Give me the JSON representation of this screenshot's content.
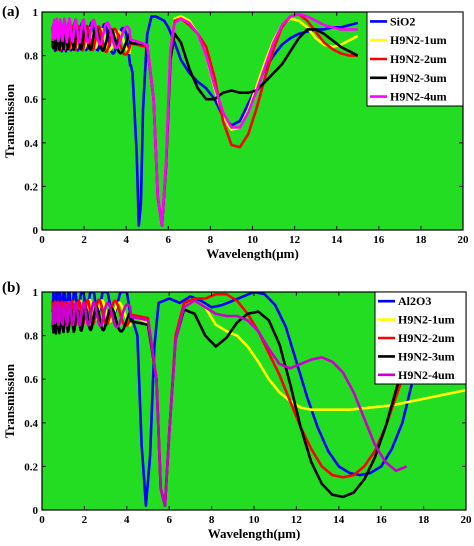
{
  "chart_data": [
    {
      "type": "line",
      "panel_label": "(a)",
      "title": "",
      "xlabel": "Wavelength(μm)",
      "ylabel": "Transmission",
      "xlim": [
        0,
        20
      ],
      "ylim": [
        0,
        1
      ],
      "xticks": [
        0,
        2,
        4,
        6,
        8,
        10,
        12,
        14,
        16,
        18,
        20
      ],
      "yticks": [
        0,
        0.2,
        0.4,
        0.6,
        0.8,
        1
      ],
      "background": "#22dd22",
      "legend_position": "top-right",
      "series": [
        {
          "name": "SiO2",
          "color": "#0000ff",
          "x": [
            0.5,
            2.5,
            4.0,
            4.3,
            4.5,
            4.6,
            4.7,
            4.8,
            5.0,
            5.2,
            5.4,
            5.6,
            5.8,
            6.0,
            6.3,
            6.6,
            7.0,
            7.4,
            7.8,
            8.2,
            8.6,
            9.0,
            9.4,
            9.8,
            10.2,
            10.6,
            11.0,
            11.4,
            11.8,
            12.2,
            12.6,
            13.0,
            13.4,
            13.8,
            14.2,
            14.6,
            15.0
          ],
          "y": [
            0.88,
            0.89,
            0.86,
            0.72,
            0.35,
            0.02,
            0.12,
            0.55,
            0.9,
            0.98,
            0.98,
            0.97,
            0.96,
            0.93,
            0.86,
            0.78,
            0.72,
            0.68,
            0.65,
            0.6,
            0.52,
            0.48,
            0.5,
            0.58,
            0.66,
            0.74,
            0.8,
            0.85,
            0.88,
            0.9,
            0.91,
            0.92,
            0.92,
            0.93,
            0.93,
            0.94,
            0.95
          ]
        },
        {
          "name": "H9N2-1um",
          "color": "#ffff00",
          "x": [
            0.5,
            2.5,
            4.0,
            5.0,
            5.3,
            5.5,
            5.7,
            5.9,
            6.1,
            6.3,
            6.6,
            7.0,
            7.4,
            7.8,
            8.2,
            8.6,
            9.0,
            9.4,
            9.8,
            10.2,
            10.6,
            11.0,
            11.4,
            11.8,
            12.2,
            12.6,
            13.0,
            13.4,
            13.8,
            14.2,
            14.6,
            15.0
          ],
          "y": [
            0.88,
            0.88,
            0.86,
            0.85,
            0.6,
            0.15,
            0.02,
            0.3,
            0.8,
            0.97,
            0.98,
            0.96,
            0.9,
            0.8,
            0.65,
            0.52,
            0.46,
            0.47,
            0.55,
            0.66,
            0.77,
            0.87,
            0.94,
            0.97,
            0.96,
            0.93,
            0.88,
            0.85,
            0.84,
            0.85,
            0.87,
            0.89
          ]
        },
        {
          "name": "H9N2-2um",
          "color": "#ff0000",
          "x": [
            0.5,
            2.5,
            4.0,
            5.0,
            5.3,
            5.5,
            5.7,
            5.9,
            6.1,
            6.3,
            6.6,
            7.0,
            7.4,
            7.8,
            8.2,
            8.6,
            9.0,
            9.4,
            9.8,
            10.2,
            10.6,
            11.0,
            11.4,
            11.8,
            12.2,
            12.6,
            13.0,
            13.4,
            13.8,
            14.2,
            14.6,
            15.0
          ],
          "y": [
            0.88,
            0.88,
            0.86,
            0.84,
            0.6,
            0.15,
            0.02,
            0.32,
            0.82,
            0.96,
            0.97,
            0.94,
            0.9,
            0.84,
            0.7,
            0.5,
            0.39,
            0.38,
            0.44,
            0.56,
            0.7,
            0.83,
            0.93,
            0.98,
            0.99,
            0.96,
            0.91,
            0.86,
            0.83,
            0.81,
            0.8,
            0.8
          ]
        },
        {
          "name": "H9N2-3um",
          "color": "#000000",
          "x": [
            0.5,
            2.5,
            4.0,
            5.0,
            5.3,
            5.5,
            5.7,
            5.9,
            6.1,
            6.3,
            6.6,
            7.0,
            7.4,
            7.8,
            8.2,
            8.6,
            9.0,
            9.4,
            9.8,
            10.2,
            10.6,
            11.0,
            11.4,
            11.8,
            12.2,
            12.6,
            13.0,
            13.4,
            13.8,
            14.2,
            14.6,
            15.0
          ],
          "y": [
            0.88,
            0.88,
            0.86,
            0.85,
            0.6,
            0.15,
            0.02,
            0.3,
            0.78,
            0.9,
            0.86,
            0.74,
            0.65,
            0.6,
            0.6,
            0.63,
            0.64,
            0.63,
            0.63,
            0.64,
            0.68,
            0.72,
            0.76,
            0.82,
            0.88,
            0.92,
            0.92,
            0.9,
            0.87,
            0.84,
            0.82,
            0.8
          ]
        },
        {
          "name": "H9N2-4um",
          "color": "#ff00ff",
          "x": [
            0.5,
            2.5,
            4.0,
            5.0,
            5.3,
            5.5,
            5.7,
            5.9,
            6.1,
            6.3,
            6.6,
            7.0,
            7.4,
            7.8,
            8.2,
            8.6,
            9.0,
            9.4,
            9.8,
            10.2,
            10.6,
            11.0,
            11.4,
            11.8,
            12.2,
            12.6,
            13.0,
            13.4,
            13.8,
            14.2,
            14.6,
            15.0
          ],
          "y": [
            0.92,
            0.91,
            0.88,
            0.85,
            0.6,
            0.15,
            0.02,
            0.32,
            0.82,
            0.95,
            0.97,
            0.95,
            0.9,
            0.8,
            0.66,
            0.54,
            0.47,
            0.47,
            0.54,
            0.64,
            0.75,
            0.86,
            0.94,
            0.98,
            0.99,
            0.98,
            0.96,
            0.94,
            0.93,
            0.92,
            0.92,
            0.92
          ]
        }
      ]
    },
    {
      "type": "line",
      "panel_label": "(b)",
      "title": "",
      "xlabel": "Wavelength(μm)",
      "ylabel": "Transmission",
      "xlim": [
        0,
        20
      ],
      "ylim": [
        0,
        1
      ],
      "xticks": [
        0,
        2,
        4,
        6,
        8,
        10,
        12,
        14,
        16,
        18,
        20
      ],
      "yticks": [
        0,
        0.2,
        0.4,
        0.6,
        0.8,
        1
      ],
      "background": "#22dd22",
      "legend_position": "top-right",
      "series": [
        {
          "name": "Al2O3",
          "color": "#0000ff",
          "x": [
            0.5,
            2.5,
            4.0,
            4.5,
            4.7,
            4.9,
            5.1,
            5.3,
            5.5,
            6.0,
            6.5,
            7.0,
            7.5,
            8.0,
            8.5,
            9.0,
            9.5,
            10.0,
            10.5,
            11.0,
            11.5,
            12.0,
            12.5,
            13.0,
            13.5,
            14.0,
            14.5,
            15.0,
            15.5,
            16.0,
            16.5,
            17.0,
            17.5,
            18.0,
            18.5
          ],
          "y": [
            0.95,
            0.97,
            0.96,
            0.8,
            0.3,
            0.02,
            0.25,
            0.75,
            0.95,
            0.97,
            0.95,
            0.98,
            0.96,
            0.93,
            0.94,
            0.96,
            0.98,
            1.0,
            0.99,
            0.94,
            0.84,
            0.68,
            0.52,
            0.38,
            0.27,
            0.2,
            0.17,
            0.16,
            0.17,
            0.2,
            0.28,
            0.4,
            0.6,
            0.82,
            0.98
          ]
        },
        {
          "name": "H9N2-1um",
          "color": "#ffff00",
          "x": [
            0.5,
            2.5,
            4.0,
            5.0,
            5.4,
            5.6,
            5.8,
            6.0,
            6.3,
            6.7,
            7.2,
            7.7,
            8.2,
            8.7,
            9.2,
            9.7,
            10.2,
            10.7,
            11.2,
            11.7,
            12.2,
            12.7,
            13.5,
            14.5,
            15.5,
            16.5,
            17.5,
            18.5,
            19.5,
            20.0
          ],
          "y": [
            0.9,
            0.92,
            0.9,
            0.86,
            0.6,
            0.1,
            0.02,
            0.35,
            0.78,
            0.93,
            0.96,
            0.93,
            0.85,
            0.82,
            0.8,
            0.75,
            0.68,
            0.6,
            0.54,
            0.5,
            0.47,
            0.46,
            0.46,
            0.46,
            0.47,
            0.48,
            0.5,
            0.52,
            0.54,
            0.55
          ]
        },
        {
          "name": "H9N2-2um",
          "color": "#ff0000",
          "x": [
            0.5,
            2.5,
            4.0,
            5.0,
            5.4,
            5.6,
            5.8,
            6.0,
            6.3,
            6.7,
            7.2,
            7.7,
            8.2,
            8.7,
            9.2,
            9.7,
            10.2,
            10.7,
            11.2,
            11.7,
            12.2,
            12.7,
            13.2,
            13.7,
            14.2,
            14.7,
            15.2,
            15.7,
            16.2,
            16.7,
            17.2,
            17.7,
            18.2,
            18.5
          ],
          "y": [
            0.9,
            0.91,
            0.9,
            0.88,
            0.6,
            0.1,
            0.02,
            0.35,
            0.8,
            0.95,
            0.97,
            0.97,
            0.99,
            0.99,
            0.96,
            0.9,
            0.82,
            0.72,
            0.62,
            0.5,
            0.38,
            0.28,
            0.2,
            0.16,
            0.15,
            0.16,
            0.2,
            0.27,
            0.38,
            0.52,
            0.66,
            0.8,
            0.93,
            0.99
          ]
        },
        {
          "name": "H9N2-3um",
          "color": "#000000",
          "x": [
            0.5,
            2.5,
            4.0,
            5.0,
            5.4,
            5.6,
            5.8,
            6.0,
            6.3,
            6.7,
            7.2,
            7.7,
            8.2,
            8.7,
            9.2,
            9.7,
            10.2,
            10.7,
            11.2,
            11.7,
            12.2,
            12.7,
            13.2,
            13.7,
            14.2,
            14.7,
            15.2,
            15.7,
            16.2,
            16.7,
            17.2,
            17.7,
            18.0
          ],
          "y": [
            0.86,
            0.88,
            0.87,
            0.85,
            0.6,
            0.1,
            0.02,
            0.35,
            0.78,
            0.92,
            0.9,
            0.8,
            0.75,
            0.79,
            0.86,
            0.9,
            0.91,
            0.87,
            0.76,
            0.58,
            0.38,
            0.22,
            0.12,
            0.07,
            0.06,
            0.08,
            0.14,
            0.24,
            0.38,
            0.55,
            0.72,
            0.88,
            0.97
          ]
        },
        {
          "name": "H9N2-4um",
          "color": "#cc00cc",
          "x": [
            0.5,
            2.5,
            4.0,
            5.0,
            5.4,
            5.6,
            5.8,
            6.0,
            6.3,
            6.7,
            7.2,
            7.7,
            8.2,
            8.7,
            9.2,
            9.7,
            10.2,
            10.7,
            11.2,
            11.7,
            12.2,
            12.7,
            13.2,
            13.7,
            14.2,
            14.7,
            15.2,
            15.7,
            16.2,
            16.7,
            17.2
          ],
          "y": [
            0.9,
            0.9,
            0.89,
            0.87,
            0.6,
            0.1,
            0.02,
            0.35,
            0.78,
            0.93,
            0.96,
            0.93,
            0.9,
            0.89,
            0.89,
            0.87,
            0.82,
            0.74,
            0.67,
            0.65,
            0.67,
            0.69,
            0.7,
            0.68,
            0.63,
            0.54,
            0.42,
            0.3,
            0.22,
            0.18,
            0.2
          ]
        }
      ]
    }
  ]
}
